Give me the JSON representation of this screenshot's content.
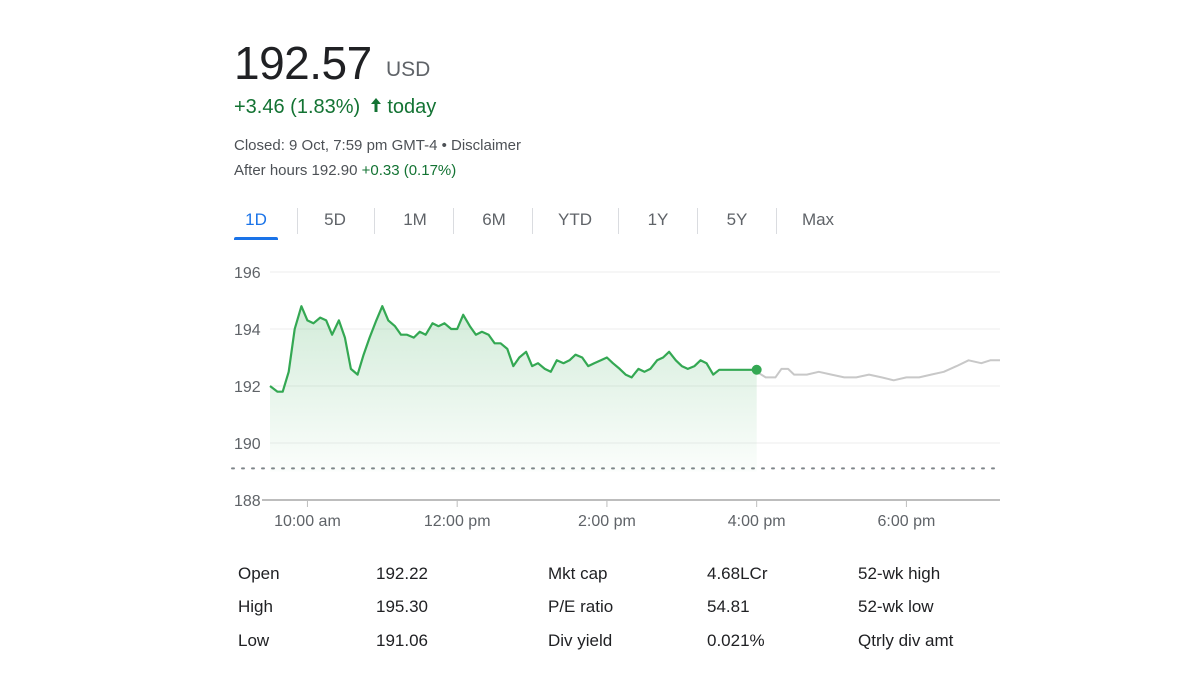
{
  "quote": {
    "price": "192.57",
    "currency": "USD",
    "change": "+3.46 (1.83%)",
    "change_suffix": "today",
    "closed_text": "Closed: 9 Oct, 7:59 pm GMT-4 • Disclaimer",
    "after_hours_label": "After hours 192.90",
    "after_hours_change": "+0.33 (0.17%)"
  },
  "tabs": [
    {
      "label": "1D",
      "active": true
    },
    {
      "label": "5D"
    },
    {
      "label": "1M"
    },
    {
      "label": "6M"
    },
    {
      "label": "YTD"
    },
    {
      "label": "1Y"
    },
    {
      "label": "5Y"
    },
    {
      "label": "Max"
    }
  ],
  "colors": {
    "up": "#137333",
    "line": "#34a853",
    "after_hours_line": "#c8c8c8",
    "accent": "#1a73e8"
  },
  "chart_data": {
    "type": "line",
    "ylim": [
      188,
      196
    ],
    "yticks": [
      "196",
      "194",
      "192",
      "190",
      "188"
    ],
    "xticks": [
      {
        "label": "10:00 am",
        "t": 10.0
      },
      {
        "label": "12:00 pm",
        "t": 12.0
      },
      {
        "label": "2:00 pm",
        "t": 14.0
      },
      {
        "label": "4:00 pm",
        "t": 16.0
      },
      {
        "label": "6:00 pm",
        "t": 18.0
      }
    ],
    "xlim": [
      9.5,
      19.25
    ],
    "previous_close": 189.11,
    "series": [
      {
        "session": "regular",
        "x": [
          9.5,
          9.6,
          9.67,
          9.75,
          9.83,
          9.92,
          10.0,
          10.08,
          10.17,
          10.25,
          10.33,
          10.42,
          10.5,
          10.58,
          10.67,
          10.75,
          10.83,
          10.92,
          11.0,
          11.08,
          11.17,
          11.25,
          11.33,
          11.42,
          11.5,
          11.58,
          11.67,
          11.75,
          11.83,
          11.92,
          12.0,
          12.08,
          12.17,
          12.25,
          12.33,
          12.42,
          12.5,
          12.58,
          12.67,
          12.75,
          12.83,
          12.92,
          13.0,
          13.08,
          13.17,
          13.25,
          13.33,
          13.42,
          13.5,
          13.58,
          13.67,
          13.75,
          13.83,
          13.92,
          14.0,
          14.08,
          14.17,
          14.25,
          14.33,
          14.42,
          14.5,
          14.58,
          14.67,
          14.75,
          14.83,
          14.92,
          15.0,
          15.08,
          15.17,
          15.25,
          15.33,
          15.42,
          15.5,
          15.58,
          15.67,
          15.75,
          15.83,
          15.92,
          16.0
        ],
        "y": [
          192.0,
          191.8,
          191.8,
          192.5,
          194.0,
          194.8,
          194.3,
          194.2,
          194.4,
          194.3,
          193.8,
          194.3,
          193.7,
          192.6,
          192.4,
          193.1,
          193.7,
          194.3,
          194.8,
          194.3,
          194.1,
          193.8,
          193.8,
          193.7,
          193.9,
          193.8,
          194.2,
          194.1,
          194.2,
          194.0,
          194.0,
          194.5,
          194.1,
          193.8,
          193.9,
          193.8,
          193.5,
          193.5,
          193.3,
          192.7,
          193.0,
          193.2,
          192.7,
          192.8,
          192.6,
          192.5,
          192.9,
          192.8,
          192.9,
          193.1,
          193.0,
          192.7,
          192.8,
          192.9,
          193.0,
          192.8,
          192.6,
          192.4,
          192.3,
          192.6,
          192.5,
          192.6,
          192.9,
          193.0,
          193.2,
          192.9,
          192.7,
          192.6,
          192.7,
          192.9,
          192.8,
          192.4,
          192.57,
          192.57,
          192.57,
          192.57,
          192.57,
          192.57,
          192.57
        ]
      },
      {
        "session": "after_hours",
        "x": [
          16.0,
          16.12,
          16.25,
          16.33,
          16.42,
          16.5,
          16.67,
          16.83,
          17.0,
          17.17,
          17.33,
          17.5,
          17.67,
          17.83,
          18.0,
          18.17,
          18.33,
          18.5,
          18.67,
          18.83,
          19.0,
          19.12,
          19.25
        ],
        "y": [
          192.5,
          192.3,
          192.3,
          192.6,
          192.6,
          192.4,
          192.4,
          192.5,
          192.4,
          192.3,
          192.3,
          192.4,
          192.3,
          192.2,
          192.3,
          192.3,
          192.4,
          192.5,
          192.7,
          192.9,
          192.8,
          192.9,
          192.9
        ]
      }
    ],
    "last_point": {
      "x": 16.0,
      "y": 192.57
    }
  },
  "stats": [
    {
      "label": "Open",
      "value": "192.22"
    },
    {
      "label": "High",
      "value": "195.30"
    },
    {
      "label": "Low",
      "value": "191.06"
    },
    {
      "label": "Mkt cap",
      "value": "4.68LCr"
    },
    {
      "label": "P/E ratio",
      "value": "54.81"
    },
    {
      "label": "Div yield",
      "value": "0.021%"
    },
    {
      "label": "52-wk high",
      "value": ""
    },
    {
      "label": "52-wk low",
      "value": ""
    },
    {
      "label": "Qtrly div amt",
      "value": ""
    }
  ]
}
